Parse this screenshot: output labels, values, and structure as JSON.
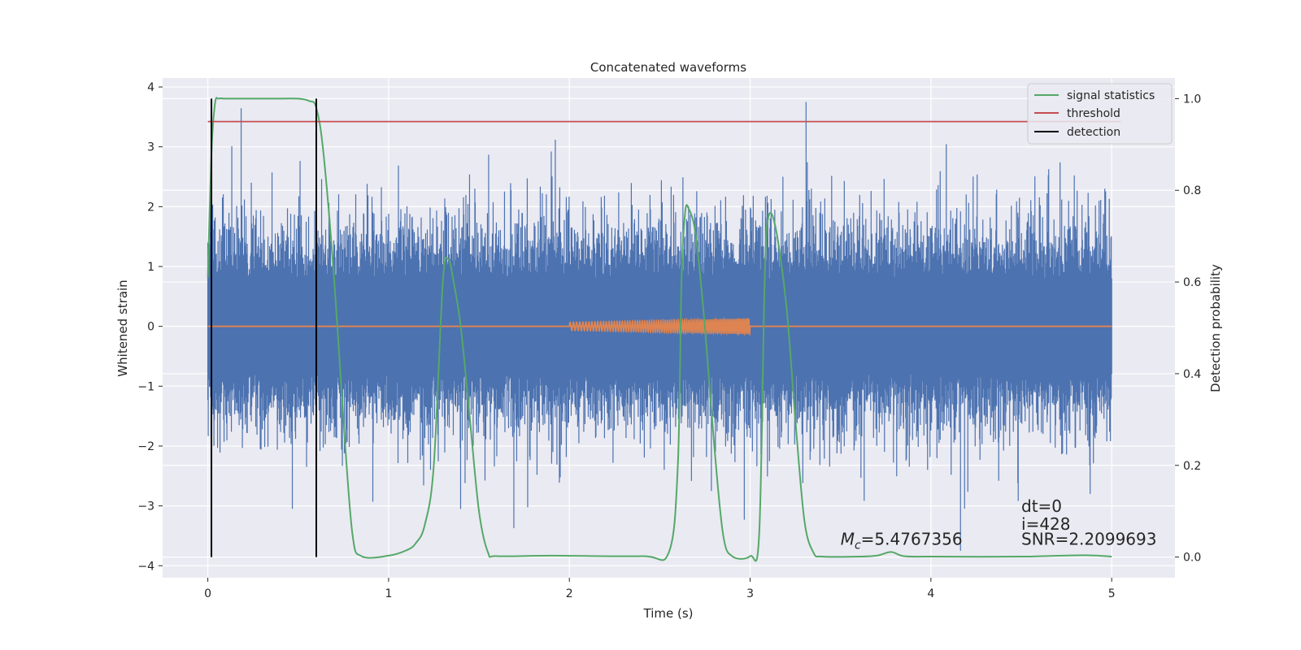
{
  "chart_data": {
    "type": "line",
    "title": "Concatenated waveforms",
    "xlabel": "Time (s)",
    "ylabel": "Whitened strain",
    "ylabel_right": "Detection probability",
    "xlim": [
      -0.25,
      5.35
    ],
    "ylim": [
      -4.2,
      4.15
    ],
    "ylim_right": [
      -0.045,
      1.045
    ],
    "x_ticks": [
      0,
      1,
      2,
      3,
      4,
      5
    ],
    "x_tick_labels": [
      "0",
      "1",
      "2",
      "3",
      "4",
      "5"
    ],
    "y_ticks": [
      -4,
      -3,
      -2,
      -1,
      0,
      1,
      2,
      3,
      4
    ],
    "y_tick_labels": [
      "−4",
      "−3",
      "−2",
      "−1",
      "0",
      "1",
      "2",
      "3",
      "4"
    ],
    "y_right_ticks": [
      0,
      0.2,
      0.4,
      0.6,
      0.8,
      1.0
    ],
    "y_right_tick_labels": [
      "0.0",
      "0.2",
      "0.4",
      "0.6",
      "0.8",
      "1.0"
    ],
    "grid": true,
    "legend_position": "top-right",
    "colors": {
      "strain": "#4c72b0",
      "template": "#dd8452",
      "signal_statistics": "#55a868",
      "threshold": "#c44e52",
      "detection": "#000000",
      "axes_background": "#eaeaf2",
      "grid": "#ffffff"
    },
    "series": [
      {
        "name": "signal statistics",
        "axis": "right",
        "x": [
          0,
          0.02,
          0.04,
          0.06,
          0.1,
          0.2,
          0.4,
          0.5,
          0.56,
          0.6,
          0.64,
          0.7,
          0.75,
          0.8,
          0.85,
          1.0,
          1.1,
          1.15,
          1.2,
          1.25,
          1.3,
          1.33,
          1.36,
          1.4,
          1.45,
          1.5,
          1.55,
          1.6,
          1.9,
          2.4,
          2.55,
          2.6,
          2.62,
          2.64,
          2.66,
          2.7,
          2.75,
          2.8,
          2.85,
          2.9,
          3.0,
          3.05,
          3.08,
          3.1,
          3.14,
          3.2,
          3.25,
          3.3,
          3.35,
          3.4,
          3.6,
          3.7,
          3.78,
          3.85,
          4.0,
          4.5,
          4.85,
          5.0
        ],
        "y": [
          0.61,
          0.88,
          0.99,
          1.0,
          1.0,
          1.0,
          1.0,
          1.0,
          0.995,
          0.98,
          0.88,
          0.6,
          0.3,
          0.05,
          0.002,
          0.003,
          0.015,
          0.03,
          0.07,
          0.2,
          0.6,
          0.65,
          0.6,
          0.5,
          0.3,
          0.1,
          0.01,
          0.002,
          0.003,
          0.002,
          0.01,
          0.2,
          0.6,
          0.75,
          0.76,
          0.7,
          0.5,
          0.25,
          0.05,
          0.002,
          0.002,
          0.05,
          0.6,
          0.74,
          0.72,
          0.55,
          0.3,
          0.08,
          0.01,
          0.001,
          0.001,
          0.003,
          0.011,
          0.002,
          0.001,
          0.001,
          0.004,
          0.001
        ]
      },
      {
        "name": "threshold",
        "axis": "right",
        "x": [
          0,
          5.05
        ],
        "y": [
          0.95,
          0.95
        ]
      },
      {
        "name": "detection",
        "axis": "right",
        "x": [
          0.02,
          0.6
        ],
        "y_range": [
          0,
          1
        ]
      },
      {
        "name": "",
        "role": "whitened strain noise",
        "axis": "left",
        "x_range": [
          0,
          5
        ],
        "typical_amplitude": 0.8,
        "peak_amplitude": 3.75
      },
      {
        "name": "",
        "role": "injected template",
        "axis": "left",
        "x_range": [
          0,
          5
        ],
        "chirp_range": [
          2.0,
          3.0
        ],
        "amplitude_range": [
          0.07,
          0.13
        ]
      }
    ],
    "annotations": [
      {
        "label": "M_c=5.4767356",
        "main": "M",
        "sub": "c",
        "value": "=5.4767356",
        "x": 3.5,
        "y": -3.65
      },
      {
        "label": "dt=0",
        "text": "dt=0",
        "x": 4.5,
        "y": -3.1
      },
      {
        "label": "i=428",
        "text": "i=428",
        "x": 4.5,
        "y": -3.4
      },
      {
        "label": "SNR=2.2099693",
        "text": "SNR=2.2099693",
        "x": 4.5,
        "y": -3.65
      }
    ]
  }
}
